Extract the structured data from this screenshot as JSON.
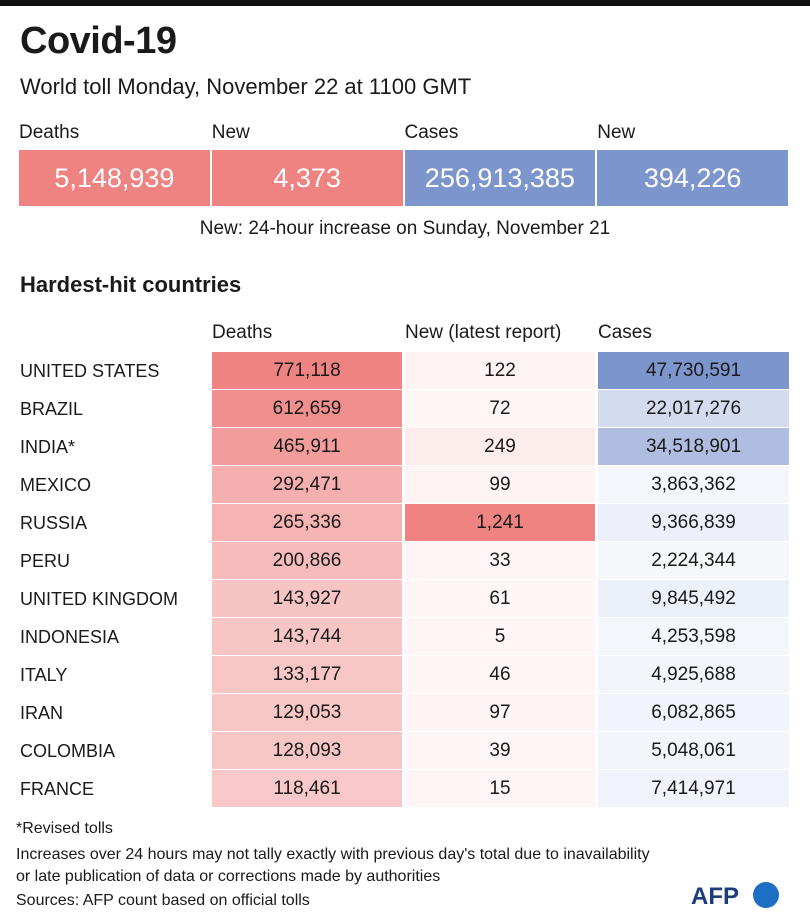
{
  "header": {
    "title": "Covid-19",
    "subtitle": "World toll Monday, November 22 at 1100 GMT"
  },
  "totals": {
    "labels": [
      "Deaths",
      "New",
      "Cases",
      "New"
    ],
    "values": [
      "5,148,939",
      "4,373",
      "256,913,385",
      "394,226"
    ]
  },
  "note": "New: 24-hour increase on Sunday, November 21",
  "section_title": "Hardest-hit countries",
  "columns": {
    "deaths": "Deaths",
    "new": "New (latest report)",
    "cases": "Cases"
  },
  "colors": {
    "red": "#ee8381",
    "blue": "#7d95cd"
  },
  "chart_data": {
    "type": "table",
    "title": "Hardest-hit countries",
    "columns": [
      "Deaths",
      "New (latest report)",
      "Cases"
    ],
    "rows": [
      {
        "country": "UNITED STATES",
        "deaths": 771118,
        "new": 122,
        "cases": 47730591
      },
      {
        "country": "BRAZIL",
        "deaths": 612659,
        "new": 72,
        "cases": 22017276
      },
      {
        "country": "INDIA*",
        "deaths": 465911,
        "new": 249,
        "cases": 34518901
      },
      {
        "country": "MEXICO",
        "deaths": 292471,
        "new": 99,
        "cases": 3863362
      },
      {
        "country": "RUSSIA",
        "deaths": 265336,
        "new": 1241,
        "cases": 9366839
      },
      {
        "country": "PERU",
        "deaths": 200866,
        "new": 33,
        "cases": 2224344
      },
      {
        "country": "UNITED KINGDOM",
        "deaths": 143927,
        "new": 61,
        "cases": 9845492
      },
      {
        "country": "INDONESIA",
        "deaths": 143744,
        "new": 5,
        "cases": 4253598
      },
      {
        "country": "ITALY",
        "deaths": 133177,
        "new": 46,
        "cases": 4925688
      },
      {
        "country": "IRAN",
        "deaths": 129053,
        "new": 97,
        "cases": 6082865
      },
      {
        "country": "COLOMBIA",
        "deaths": 128093,
        "new": 39,
        "cases": 5048061
      },
      {
        "country": "FRANCE",
        "deaths": 118461,
        "new": 15,
        "cases": 7414971
      }
    ]
  },
  "footer": {
    "revised": "*Revised tolls",
    "disclaimer_1": "Increases over 24 hours may not tally exactly with previous day's total due to inavailability",
    "disclaimer_2": "or late publication of data or corrections made by authorities",
    "sources": "Sources: AFP count based on official tolls"
  },
  "logo": {
    "text": "AFP"
  }
}
